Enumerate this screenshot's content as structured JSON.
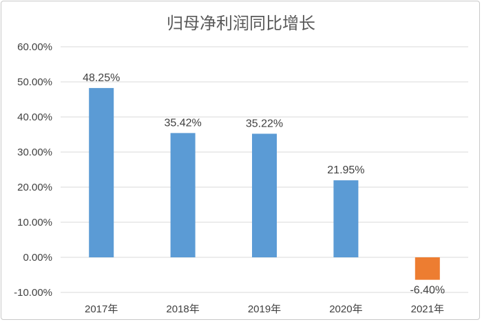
{
  "chart_data": {
    "type": "bar",
    "title": "归母净利润同比增长",
    "xlabel": "",
    "ylabel": "",
    "categories": [
      "2017年",
      "2018年",
      "2019年",
      "2020年",
      "2021年"
    ],
    "values": [
      48.25,
      35.42,
      35.22,
      21.95,
      -6.4
    ],
    "data_labels": [
      "48.25%",
      "35.42%",
      "35.22%",
      "21.95%",
      "-6.40%"
    ],
    "y_ticks": [
      60,
      50,
      40,
      30,
      20,
      10,
      0,
      -10
    ],
    "y_tick_labels": [
      "60.00%",
      "50.00%",
      "40.00%",
      "30.00%",
      "20.00%",
      "10.00%",
      "0.00%",
      "-10.00%"
    ],
    "ylim": [
      -10,
      60
    ],
    "grid": true,
    "legend": "none",
    "colors": {
      "positive": "#5b9bd5",
      "negative": "#ed7d31"
    }
  }
}
